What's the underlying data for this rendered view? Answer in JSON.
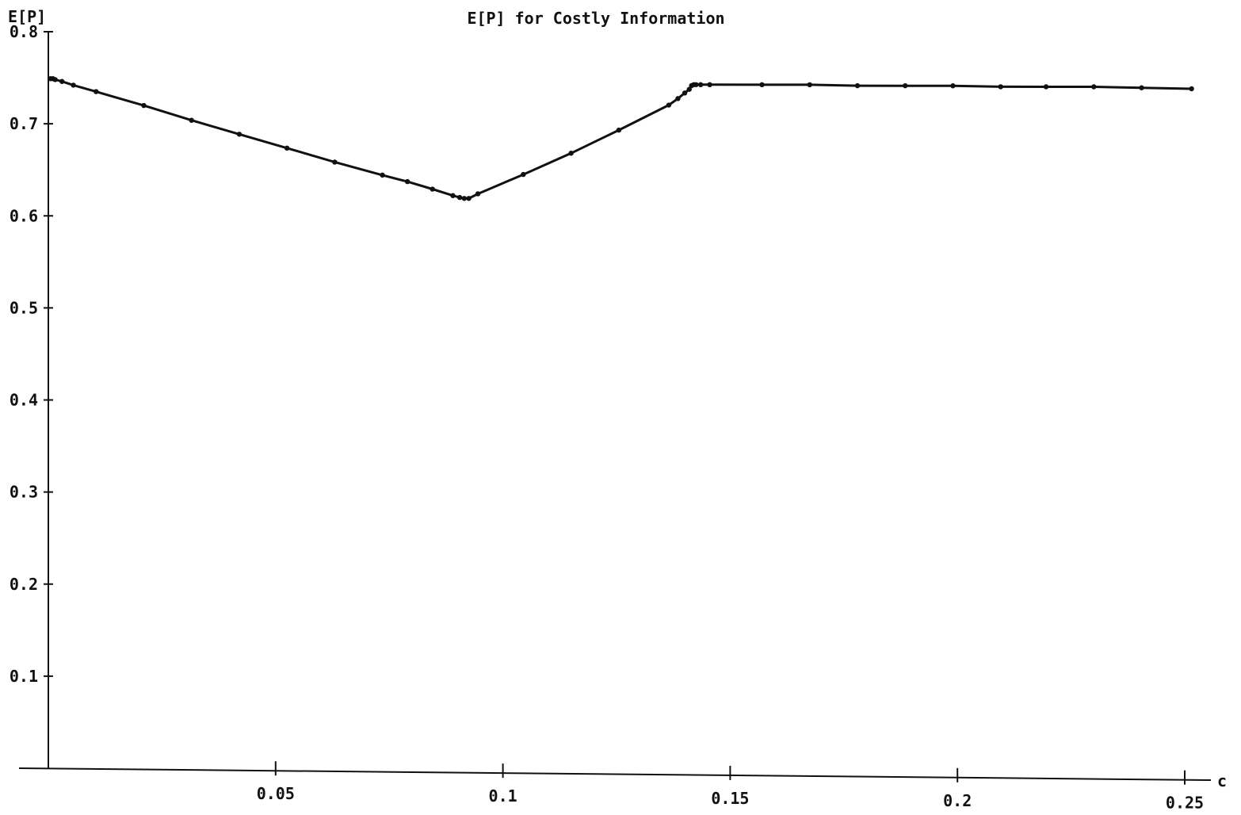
{
  "chart_data": {
    "type": "line",
    "title": "E[P] for Costly Information",
    "xlabel": "c",
    "ylabel": "E[P]",
    "xlim": [
      0,
      0.25
    ],
    "ylim": [
      0,
      0.8
    ],
    "x_ticks": [
      0.05,
      0.1,
      0.15,
      0.2,
      0.25
    ],
    "x_tick_labels": [
      "0.05",
      "0.1",
      "0.15",
      "0.2",
      "0.25"
    ],
    "y_ticks": [
      0.1,
      0.2,
      0.3,
      0.4,
      0.5,
      0.6,
      0.7,
      0.8
    ],
    "y_tick_labels": [
      "0.1",
      "0.2",
      "0.3",
      "0.4",
      "0.5",
      "0.6",
      "0.7",
      "0.8"
    ],
    "grid": false,
    "legend": "none",
    "line_color": "#111111",
    "series": [
      {
        "x": [
          0.0005,
          0.001,
          0.0015,
          0.003,
          0.0055,
          0.0105,
          0.021,
          0.0315,
          0.042,
          0.0525,
          0.063,
          0.0735,
          0.079,
          0.0845,
          0.089,
          0.0905,
          0.0915,
          0.0925,
          0.0945,
          0.1045,
          0.115,
          0.1255,
          0.1365,
          0.1385,
          0.14,
          0.141,
          0.1415,
          0.142,
          0.1425,
          0.1435,
          0.1455,
          0.157,
          0.1675,
          0.178,
          0.1885,
          0.199,
          0.2095,
          0.2195,
          0.23,
          0.2405,
          0.2515
        ],
        "y": [
          0.749,
          0.749,
          0.748,
          0.746,
          0.742,
          0.735,
          0.72,
          0.704,
          0.689,
          0.674,
          0.659,
          0.645,
          0.638,
          0.63,
          0.623,
          0.621,
          0.62,
          0.62,
          0.625,
          0.646,
          0.669,
          0.694,
          0.721,
          0.728,
          0.734,
          0.738,
          0.742,
          0.743,
          0.743,
          0.743,
          0.743,
          0.743,
          0.743,
          0.742,
          0.742,
          0.742,
          0.741,
          0.741,
          0.741,
          0.74,
          0.739
        ]
      }
    ]
  }
}
